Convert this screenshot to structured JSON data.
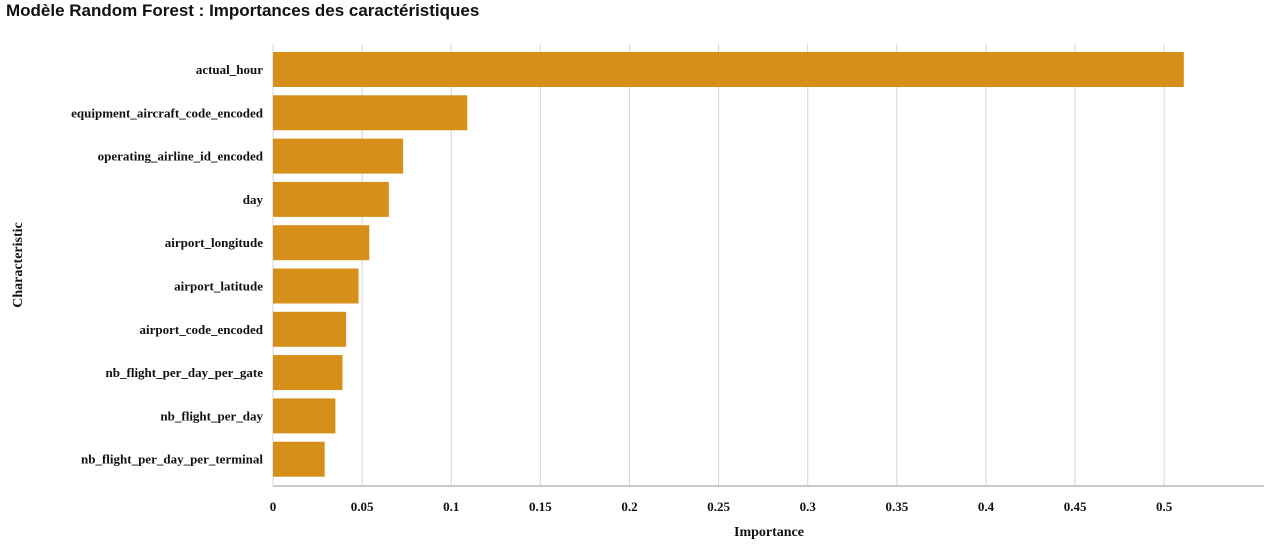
{
  "chart_data": {
    "type": "bar",
    "orientation": "horizontal",
    "title": "Modèle Random Forest : Importances des caractéristiques",
    "xlabel": "Importance",
    "ylabel": "Characteristic",
    "categories": [
      "actual_hour",
      "equipment_aircraft_code_encoded",
      "operating_airline_id_encoded",
      "day",
      "airport_longitude",
      "airport_latitude",
      "airport_code_encoded",
      "nb_flight_per_day_per_gate",
      "nb_flight_per_day",
      "nb_flight_per_day_per_terminal"
    ],
    "values": [
      0.511,
      0.109,
      0.073,
      0.065,
      0.054,
      0.048,
      0.041,
      0.039,
      0.035,
      0.029
    ],
    "xlim": [
      0,
      0.556
    ],
    "xticks": [
      0,
      0.05,
      0.1,
      0.15,
      0.2,
      0.25,
      0.3,
      0.35,
      0.4,
      0.45,
      0.5
    ],
    "xtick_labels": [
      "0",
      "0.05",
      "0.1",
      "0.15",
      "0.2",
      "0.25",
      "0.3",
      "0.35",
      "0.4",
      "0.45",
      "0.5"
    ],
    "grid": true,
    "legend": "none",
    "bar_color": "#d69019",
    "grid_color": "#d4d4d4",
    "axis_color": "#b8b8b8"
  }
}
